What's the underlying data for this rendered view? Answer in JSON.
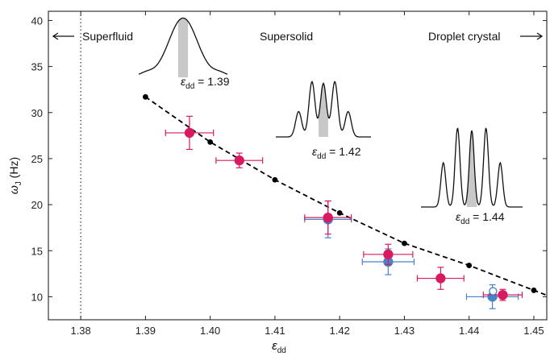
{
  "chart_data": {
    "type": "scatter",
    "xlabel_main": "ε",
    "xlabel_sub": "dd",
    "ylabel_main": "ω",
    "ylabel_sub": "J",
    "ylabel_unit": " (Hz)",
    "xlim": [
      1.375,
      1.452
    ],
    "ylim": [
      7.5,
      41
    ],
    "xticks": [
      1.38,
      1.39,
      1.4,
      1.41,
      1.42,
      1.43,
      1.44,
      1.45
    ],
    "xtick_labels": [
      "1.38",
      "1.39",
      "1.40",
      "1.41",
      "1.42",
      "1.43",
      "1.44",
      "1.45"
    ],
    "yticks": [
      10,
      15,
      20,
      25,
      30,
      35,
      40
    ],
    "ytick_labels": [
      "10",
      "15",
      "20",
      "25",
      "30",
      "35",
      "40"
    ],
    "boundary_x": 1.38,
    "regions": {
      "superfluid": "Superfluid",
      "supersolid": "Supersolid",
      "droplet": "Droplet crystal"
    },
    "theory": {
      "color": "#000000",
      "points": [
        {
          "x": 1.39,
          "y": 31.7
        },
        {
          "x": 1.4,
          "y": 26.8
        },
        {
          "x": 1.41,
          "y": 22.7
        },
        {
          "x": 1.42,
          "y": 19.1
        },
        {
          "x": 1.43,
          "y": 15.8
        },
        {
          "x": 1.44,
          "y": 13.4
        },
        {
          "x": 1.45,
          "y": 10.7
        }
      ]
    },
    "series": [
      {
        "color": "#d81b60",
        "points": [
          {
            "x": 1.3968,
            "y": 27.8,
            "xerr": 0.0037,
            "yerr": 1.8
          },
          {
            "x": 1.4045,
            "y": 24.8,
            "xerr": 0.0036,
            "yerr": 0.8
          },
          {
            "x": 1.4182,
            "y": 18.6,
            "xerr": 0.0036,
            "yerr": 1.8
          },
          {
            "x": 1.4275,
            "y": 14.6,
            "xerr": 0.0038,
            "yerr": 1.1
          },
          {
            "x": 1.4356,
            "y": 12.0,
            "xerr": 0.0036,
            "yerr": 1.2
          },
          {
            "x": 1.4452,
            "y": 10.2,
            "xerr": 0.003,
            "yerr": 0.6
          }
        ]
      },
      {
        "color": "#4a82c8",
        "points": [
          {
            "x": 1.4182,
            "y": 18.4,
            "xerr": 0.0036,
            "yerr": 2.0
          },
          {
            "x": 1.4275,
            "y": 13.8,
            "xerr": 0.004,
            "yerr": 1.4
          },
          {
            "x": 1.4436,
            "y": 10.0,
            "xerr": 0.004,
            "yerr": 1.3
          }
        ]
      }
    ],
    "open_marker": {
      "x": 1.4437,
      "y": 10.6,
      "color": "#4a82c8"
    },
    "insets": [
      {
        "eps_value": " = 1.39"
      },
      {
        "eps_value": " = 1.42"
      },
      {
        "eps_value": " = 1.44"
      }
    ]
  }
}
